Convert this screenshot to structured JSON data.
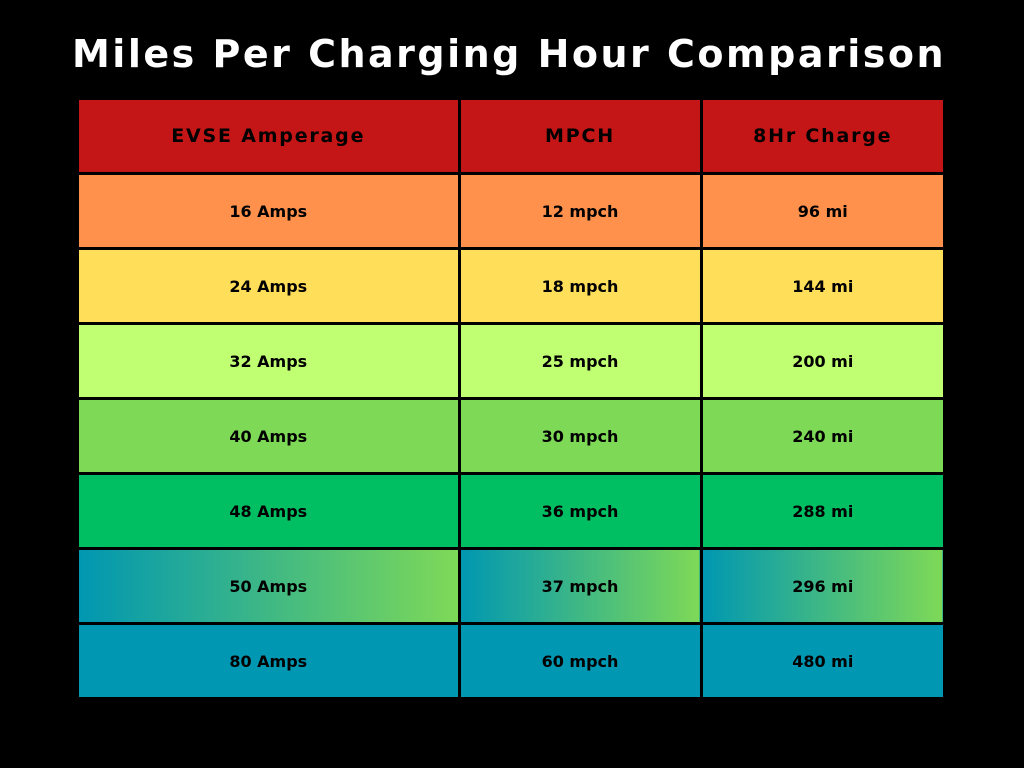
{
  "title": "Miles Per Charging Hour Comparison",
  "colors": {
    "background": "#000000",
    "header": "#c41616",
    "title_text": "#ffffff",
    "cell_text": "#000000"
  },
  "chart_data": {
    "type": "table",
    "title": "Miles Per Charging Hour Comparison",
    "columns": [
      "EVSE Amperage",
      "MPCH",
      "8Hr Charge"
    ],
    "rows": [
      {
        "cells": [
          "16 Amps",
          "12 mpch",
          "96 mi"
        ],
        "amps": 16,
        "mpch": 12,
        "miles_8hr": 96,
        "fill": "#ff914d"
      },
      {
        "cells": [
          "24 Amps",
          "18 mpch",
          "144 mi"
        ],
        "amps": 24,
        "mpch": 18,
        "miles_8hr": 144,
        "fill": "#ffde59"
      },
      {
        "cells": [
          "32 Amps",
          "25 mpch",
          "200 mi"
        ],
        "amps": 32,
        "mpch": 25,
        "miles_8hr": 200,
        "fill": "#c1ff72"
      },
      {
        "cells": [
          "40 Amps",
          "30 mpch",
          "240 mi"
        ],
        "amps": 40,
        "mpch": 30,
        "miles_8hr": 240,
        "fill": "#7ed957"
      },
      {
        "cells": [
          "48 Amps",
          "36 mpch",
          "288 mi"
        ],
        "amps": 48,
        "mpch": 36,
        "miles_8hr": 288,
        "fill": "#00bf63"
      },
      {
        "cells": [
          "50 Amps",
          "37 mpch",
          "296 mi"
        ],
        "amps": 50,
        "mpch": 37,
        "miles_8hr": 296,
        "fill": "gradient",
        "gradient": [
          "#0097b2",
          "#7ed957"
        ]
      },
      {
        "cells": [
          "80 Amps",
          "60 mpch",
          "480 mi"
        ],
        "amps": 80,
        "mpch": 60,
        "miles_8hr": 480,
        "fill": "#0097b2"
      }
    ]
  }
}
